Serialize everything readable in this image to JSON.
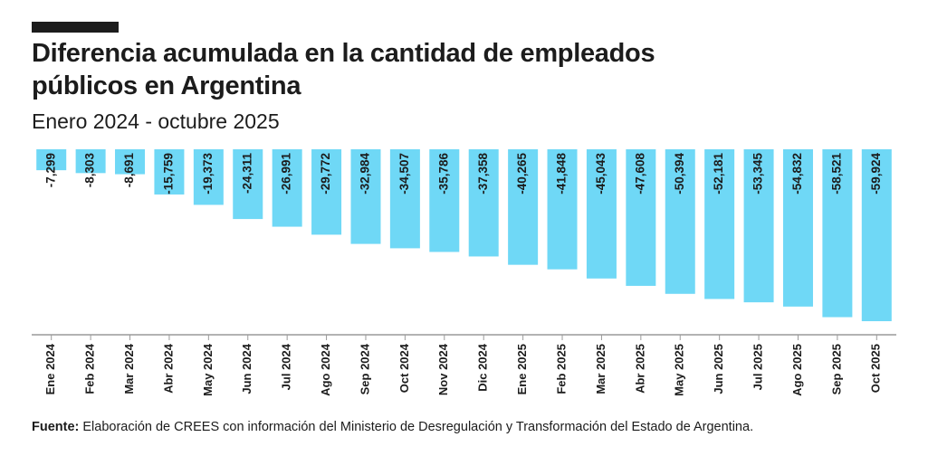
{
  "chart_data": {
    "type": "bar",
    "title": "Diferencia acumulada en la cantidad de empleados públicos en Argentina",
    "subtitle": "Enero 2024 - octubre 2025",
    "categories": [
      "Ene 2024",
      "Feb 2024",
      "Mar 2024",
      "Abr 2024",
      "May 2024",
      "Jun 2024",
      "Jul 2024",
      "Ago 2024",
      "Sep 2024",
      "Oct 2024",
      "Nov 2024",
      "Dic 2024",
      "Ene 2025",
      "Feb 2025",
      "Mar 2025",
      "Abr 2025",
      "May 2025",
      "Jun 2025",
      "Jul 2025",
      "Ago 2025",
      "Sep 2025",
      "Oct 2025"
    ],
    "values": [
      -7299,
      -8303,
      -8691,
      -15759,
      -19373,
      -24311,
      -26991,
      -29772,
      -32984,
      -34507,
      -35786,
      -37358,
      -40265,
      -41848,
      -45043,
      -47608,
      -50394,
      -52181,
      -53345,
      -54832,
      -58521,
      -59924
    ],
    "value_labels": [
      "-7,299",
      "-8,303",
      "-8,691",
      "-15,759",
      "-19,373",
      "-24,311",
      "-26,991",
      "-29,772",
      "-32,984",
      "-34,507",
      "-35,786",
      "-37,358",
      "-40,265",
      "-41,848",
      "-45,043",
      "-47,608",
      "-50,394",
      "-52,181",
      "-53,345",
      "-54,832",
      "-58,521",
      "-59,924"
    ],
    "color": "#6fd8f6",
    "source_label": "Fuente:",
    "source": "Elaboración de CREES con información del Ministerio de Desregulación y Transformación del Estado de Argentina."
  }
}
